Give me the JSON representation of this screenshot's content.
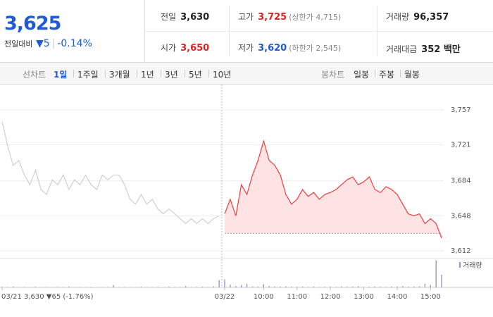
{
  "quote": {
    "price": "3,625",
    "change_label": "전일대비",
    "change": "▼5",
    "rate": "-0.14%"
  },
  "stats": [
    {
      "label": "전일",
      "value": "3,630"
    },
    {
      "label": "고가",
      "value": "3,725",
      "note": "(상한가 4,715)",
      "color": "#e0201f"
    },
    {
      "label": "거래량",
      "value": "96,357"
    },
    {
      "label": "시가",
      "value": "3,650",
      "color": "#e0201f"
    },
    {
      "label": "저가",
      "value": "3,620",
      "note": "(하한가 2,545)",
      "color": "#1f5bd6"
    },
    {
      "label": "거래대금",
      "value": "352 백만"
    }
  ],
  "line_tabs": {
    "label": "선차트",
    "items": [
      "1일",
      "1주일",
      "3개월",
      "1년",
      "3년",
      "5년",
      "10년"
    ],
    "active": 0
  },
  "candle_tabs": {
    "label": "봉차트",
    "items": [
      "일봉",
      "주봉",
      "월봉"
    ]
  },
  "chart_data": [
    {
      "type": "line",
      "categories": [
        "03/21",
        null,
        null,
        null,
        null,
        null,
        null,
        null,
        null,
        null,
        null,
        null,
        null,
        null,
        null,
        null,
        null,
        null,
        null,
        null,
        null,
        null,
        null,
        null,
        null,
        null,
        null,
        null,
        null,
        null,
        null,
        null,
        null,
        null,
        null,
        null,
        null,
        null,
        null,
        null,
        "03/22",
        null,
        null,
        null,
        null,
        null,
        null,
        "10:00",
        null,
        null,
        null,
        null,
        null,
        "11:00",
        null,
        null,
        null,
        null,
        null,
        "12:00",
        null,
        null,
        null,
        null,
        null,
        "13:00",
        null,
        null,
        null,
        null,
        null,
        "14:00",
        null,
        null,
        null,
        null,
        null,
        "15:00",
        null,
        null
      ],
      "series": [
        {
          "color": "#cfcfcf",
          "values": [
            3745,
            3720,
            3700,
            3705,
            3690,
            3680,
            3695,
            3675,
            3670,
            3685,
            3680,
            3690,
            3675,
            3685,
            3680,
            3690,
            3680,
            3675,
            3690,
            3685,
            3690,
            3690,
            3680,
            3665,
            3660,
            3670,
            3660,
            3665,
            3655,
            3650,
            3655,
            3650,
            3645,
            3640,
            3645,
            3640,
            3645,
            3640,
            3645,
            3648,
            null,
            null,
            null,
            null,
            null,
            null,
            null,
            null,
            null,
            null,
            null,
            null,
            null,
            null,
            null,
            null,
            null,
            null,
            null,
            null,
            null,
            null,
            null,
            null,
            null,
            null,
            null,
            null,
            null,
            null,
            null,
            null,
            null,
            null,
            null,
            null,
            null,
            null,
            null,
            null
          ]
        },
        {
          "color": "#f03c3c",
          "fill": "#fde3e3",
          "fill_to": 3630,
          "values": [
            null,
            null,
            null,
            null,
            null,
            null,
            null,
            null,
            null,
            null,
            null,
            null,
            null,
            null,
            null,
            null,
            null,
            null,
            null,
            null,
            null,
            null,
            null,
            null,
            null,
            null,
            null,
            null,
            null,
            null,
            null,
            null,
            null,
            null,
            null,
            null,
            null,
            null,
            null,
            null,
            3650,
            3665,
            3648,
            3680,
            3670,
            3690,
            3705,
            3725,
            3705,
            3700,
            3690,
            3670,
            3660,
            3665,
            3675,
            3668,
            3672,
            3665,
            3670,
            3672,
            3675,
            3680,
            3685,
            3688,
            3680,
            3683,
            3688,
            3675,
            3672,
            3678,
            3675,
            3670,
            3660,
            3650,
            3648,
            3650,
            3640,
            3645,
            3640,
            3625
          ]
        }
      ],
      "ylim": [
        3612,
        3757
      ],
      "yticks": [
        {
          "value": 3757,
          "label": "3,757"
        },
        {
          "value": 3721,
          "label": "3,721"
        },
        {
          "value": 3684,
          "label": "3,684"
        },
        {
          "value": 3648,
          "label": "3,648"
        },
        {
          "value": 3612,
          "label": "3,612"
        }
      ],
      "grid": true,
      "annotation": "3,630 ▼65 (-1.76%)"
    },
    {
      "type": "bar",
      "series": [
        {
          "name": "거래량",
          "color": "#9b8fd0",
          "values": [
            600,
            400,
            900,
            300,
            500,
            200,
            700,
            300,
            400,
            250,
            500,
            300,
            800,
            200,
            300,
            400,
            600,
            200,
            300,
            500,
            2500,
            300,
            400,
            200,
            300,
            600,
            400,
            300,
            500,
            200,
            800,
            300,
            400,
            1500,
            300,
            500,
            700,
            400,
            1200,
            8000,
            9000,
            3000,
            1500,
            2500,
            4000,
            1000,
            800,
            3500,
            1500,
            1000,
            900,
            1200,
            700,
            600,
            800,
            500,
            900,
            400,
            600,
            700,
            500,
            1000,
            600,
            800,
            1200,
            500,
            700,
            900,
            600,
            400,
            800,
            1000,
            1500,
            700,
            900,
            1200,
            4000,
            2500,
            30000,
            14000
          ]
        }
      ],
      "ylim": [
        0,
        32000
      ]
    }
  ]
}
